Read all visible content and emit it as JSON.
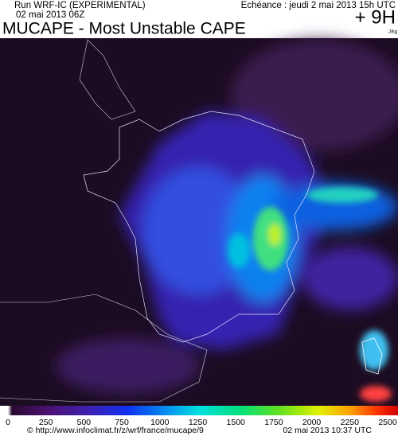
{
  "header": {
    "run": "Run WRF-IC (EXPERIMENTAL)",
    "run_date": "02 mai 2013 06Z",
    "valid": "Echéance : jeudi 2 mai 2013 15h UTC",
    "lead": "+ 9H",
    "title": "MUCAPE - Most Unstable CAPE",
    "unit": "J/kg"
  },
  "legend": {
    "ticks": [
      0,
      250,
      500,
      750,
      1000,
      1250,
      1500,
      1750,
      2000,
      2250,
      2500
    ]
  },
  "footer": {
    "source": "© http://www.infoclimat.fr/z/wrf/france/mucape/9",
    "stamp": "02 mai 2013 10:37 UTC"
  }
}
